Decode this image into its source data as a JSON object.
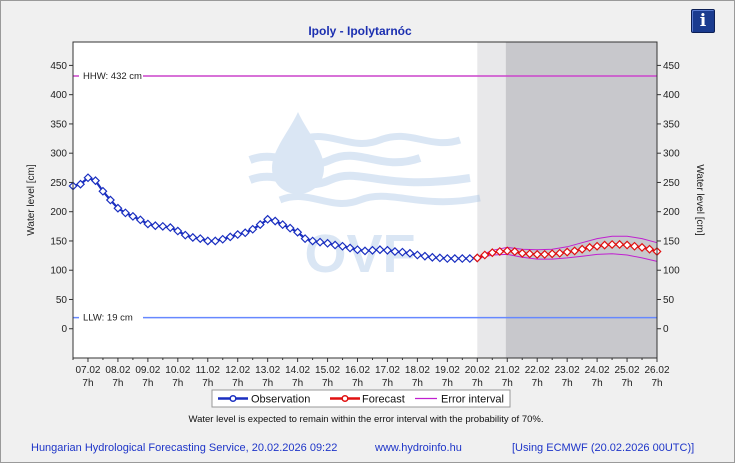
{
  "info_button": {
    "label": "i"
  },
  "chart_data": {
    "type": "line",
    "title": "Ipoly - Ipolytarnóc",
    "ylabel_left": "Water level [cm]",
    "ylabel_right": "Water level [cm]",
    "ylim": [
      -50,
      490
    ],
    "y_ticks": [
      0,
      50,
      100,
      150,
      200,
      250,
      300,
      350,
      400,
      450
    ],
    "x_range": [
      6.5,
      26.0
    ],
    "x_ticks": [
      {
        "x": 7,
        "date": "07.02",
        "hour": "7h"
      },
      {
        "x": 8,
        "date": "08.02",
        "hour": "7h"
      },
      {
        "x": 9,
        "date": "09.02",
        "hour": "7h"
      },
      {
        "x": 10,
        "date": "10.02",
        "hour": "7h"
      },
      {
        "x": 11,
        "date": "11.02",
        "hour": "7h"
      },
      {
        "x": 12,
        "date": "12.02",
        "hour": "7h"
      },
      {
        "x": 13,
        "date": "13.02",
        "hour": "7h"
      },
      {
        "x": 14,
        "date": "14.02",
        "hour": "7h"
      },
      {
        "x": 15,
        "date": "15.02",
        "hour": "7h"
      },
      {
        "x": 16,
        "date": "16.02",
        "hour": "7h"
      },
      {
        "x": 17,
        "date": "17.02",
        "hour": "7h"
      },
      {
        "x": 18,
        "date": "18.02",
        "hour": "7h"
      },
      {
        "x": 19,
        "date": "19.02",
        "hour": "7h"
      },
      {
        "x": 20,
        "date": "20.02",
        "hour": "7h"
      },
      {
        "x": 21,
        "date": "21.02",
        "hour": "7h"
      },
      {
        "x": 22,
        "date": "22.02",
        "hour": "7h"
      },
      {
        "x": 23,
        "date": "23.02",
        "hour": "7h"
      },
      {
        "x": 24,
        "date": "24.02",
        "hour": "7h"
      },
      {
        "x": 25,
        "date": "25.02",
        "hour": "7h"
      },
      {
        "x": 26,
        "date": "26.02",
        "hour": "7h"
      }
    ],
    "shaded_regions": [
      {
        "from": 20.0,
        "to": 20.95,
        "color": "#e8e8ea"
      },
      {
        "from": 20.95,
        "to": 26.0,
        "color": "#c8c8cc"
      }
    ],
    "reference_lines": [
      {
        "label": "HHW: 432 cm",
        "value": 432,
        "color": "#cc44cc"
      },
      {
        "label": "LLW: 19 cm",
        "value": 19,
        "color": "#6688ff"
      }
    ],
    "series": [
      {
        "name": "Observation",
        "color": "#1a2fc0",
        "x": [
          6.5,
          6.75,
          7.0,
          7.25,
          7.5,
          7.75,
          8.0,
          8.25,
          8.5,
          8.75,
          9.0,
          9.25,
          9.5,
          9.75,
          10.0,
          10.25,
          10.5,
          10.75,
          11.0,
          11.25,
          11.5,
          11.75,
          12.0,
          12.25,
          12.5,
          12.75,
          13.0,
          13.25,
          13.5,
          13.75,
          14.0,
          14.25,
          14.5,
          14.75,
          15.0,
          15.25,
          15.5,
          15.75,
          16.0,
          16.25,
          16.5,
          16.75,
          17.0,
          17.25,
          17.5,
          17.75,
          18.0,
          18.25,
          18.5,
          18.75,
          19.0,
          19.25,
          19.5,
          19.75,
          20.0
        ],
        "values": [
          244,
          247,
          258,
          253,
          235,
          220,
          206,
          198,
          192,
          186,
          179,
          176,
          175,
          173,
          167,
          160,
          156,
          154,
          150,
          150,
          153,
          157,
          161,
          164,
          170,
          178,
          187,
          184,
          178,
          172,
          165,
          154,
          150,
          148,
          146,
          143,
          141,
          138,
          135,
          133,
          134,
          135,
          134,
          132,
          131,
          129,
          126,
          124,
          122,
          121,
          120,
          120,
          120,
          120,
          121
        ]
      },
      {
        "name": "Forecast",
        "color": "#e01010",
        "x": [
          20.0,
          20.25,
          20.5,
          20.75,
          21.0,
          21.25,
          21.5,
          21.75,
          22.0,
          22.25,
          22.5,
          22.75,
          23.0,
          23.25,
          23.5,
          23.75,
          24.0,
          24.25,
          24.5,
          24.75,
          25.0,
          25.25,
          25.5,
          25.75,
          26.0
        ],
        "values": [
          121,
          126,
          130,
          132,
          133,
          132,
          129,
          128,
          127,
          127,
          128,
          129,
          131,
          133,
          136,
          139,
          141,
          143,
          144,
          144,
          143,
          141,
          139,
          136,
          132
        ]
      },
      {
        "name": "Error interval",
        "color": "#c020d0",
        "x": [
          20.0,
          20.5,
          21.0,
          21.5,
          22.0,
          22.5,
          23.0,
          23.5,
          24.0,
          24.5,
          25.0,
          25.5,
          26.0
        ],
        "upper": [
          122,
          134,
          139,
          136,
          135,
          136,
          140,
          147,
          154,
          158,
          158,
          154,
          147
        ],
        "lower": [
          120,
          126,
          127,
          122,
          119,
          119,
          121,
          124,
          127,
          128,
          126,
          121,
          115
        ]
      }
    ],
    "legend": [
      "Observation",
      "Forecast",
      "Error interval"
    ],
    "legend_placement": "bottom-center",
    "grid": false,
    "note": "Water level is expected to remain within the error interval with the probability of 70%."
  },
  "footer": {
    "service": "Hungarian Hydrological Forecasting Service, 20.02.2026 09:22",
    "website": "www.hydroinfo.hu",
    "model": "[Using ECMWF (20.02.2026  00UTC)]"
  }
}
